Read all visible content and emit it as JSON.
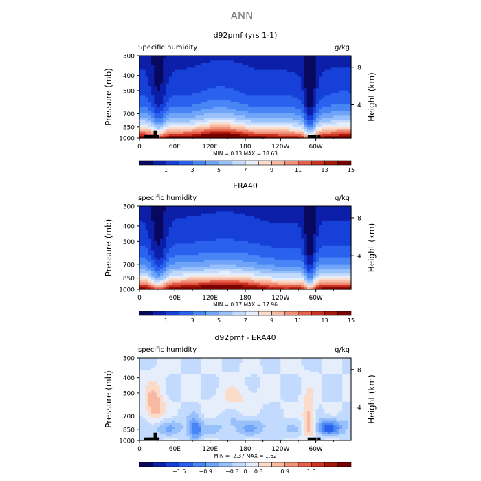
{
  "figure_title": "ANN",
  "colors": {
    "abs_scale": [
      "#08085e",
      "#0c1fa8",
      "#1640d8",
      "#2a62ee",
      "#4886f5",
      "#6fa4f8",
      "#98c0fb",
      "#c1dafd",
      "#e6eefc",
      "#fbdccb",
      "#f7b9a1",
      "#f2917a",
      "#e65f4a",
      "#cc3322",
      "#a81808",
      "#7a0000"
    ],
    "diff_scale": [
      "#08085e",
      "#0c1fa8",
      "#1640d8",
      "#2a62ee",
      "#4886f5",
      "#6fa4f8",
      "#98c0fb",
      "#c1dafd",
      "#e6eefc",
      "#fbdccb",
      "#f7b9a1",
      "#f2917a",
      "#e65f4a",
      "#cc3322",
      "#a81808",
      "#7a0000"
    ],
    "topography": "#000000"
  },
  "chart_data": [
    {
      "type": "heatmap",
      "title": "d92pmf (yrs 1-1)",
      "left_label": "Specific humidity",
      "right_label": "g/kg",
      "ylabel": "Pressure (mb)",
      "ylabel_right": "Height (km)",
      "yticks": [
        "300",
        "400",
        "500",
        "700",
        "850",
        "1000"
      ],
      "yticks_right": [
        "8",
        "4"
      ],
      "xticks": [
        "0",
        "60E",
        "120E",
        "180",
        "120W",
        "60W"
      ],
      "xlim": [
        0,
        360
      ],
      "ylim_mb": [
        1000,
        300
      ],
      "min_label": "MIN =",
      "min_value": "0.13",
      "max_label": "MAX =",
      "max_value": "18.63",
      "colorbar_labels": [
        "1",
        "3",
        "5",
        "7",
        "9",
        "11",
        "13",
        "15"
      ],
      "levels_start": 0,
      "levels_step": 1,
      "n_colors": 16
    },
    {
      "type": "heatmap",
      "title": "ERA40",
      "left_label": "specific humidity",
      "right_label": "g/kg",
      "ylabel": "Pressure (mb)",
      "ylabel_right": "Height (km)",
      "yticks": [
        "300",
        "400",
        "500",
        "700",
        "850",
        "1000"
      ],
      "yticks_right": [
        "8",
        "4"
      ],
      "xticks": [
        "0",
        "60E",
        "120E",
        "180",
        "120W",
        "60W"
      ],
      "xlim": [
        0,
        360
      ],
      "ylim_mb": [
        1000,
        300
      ],
      "min_label": "MIN =",
      "min_value": "0.17",
      "max_label": "MAX =",
      "max_value": "17.96",
      "colorbar_labels": [
        "1",
        "3",
        "5",
        "7",
        "9",
        "11",
        "13",
        "15"
      ],
      "levels_start": 0,
      "levels_step": 1,
      "n_colors": 16
    },
    {
      "type": "heatmap",
      "title": "d92pmf - ERA40",
      "left_label": "specific humidity",
      "right_label": "g/kg",
      "ylabel": "Pressure (mb)",
      "ylabel_right": "Height (km)",
      "yticks": [
        "300",
        "400",
        "500",
        "700",
        "850",
        "1000"
      ],
      "yticks_right": [
        "8",
        "4"
      ],
      "xticks": [
        "0",
        "60E",
        "120E",
        "180",
        "120W",
        "60W"
      ],
      "xlim": [
        0,
        360
      ],
      "ylim_mb": [
        1000,
        300
      ],
      "min_label": "MIN =",
      "min_value": "-2.37",
      "max_label": "MAX =",
      "max_value": "1.62",
      "colorbar_labels": [
        "-1.5",
        "-0.9",
        "-0.3",
        "0",
        "0.3",
        "0.9",
        "1.5"
      ],
      "levels_start": -2.1,
      "levels_step": 0.3,
      "n_colors": 16
    }
  ]
}
